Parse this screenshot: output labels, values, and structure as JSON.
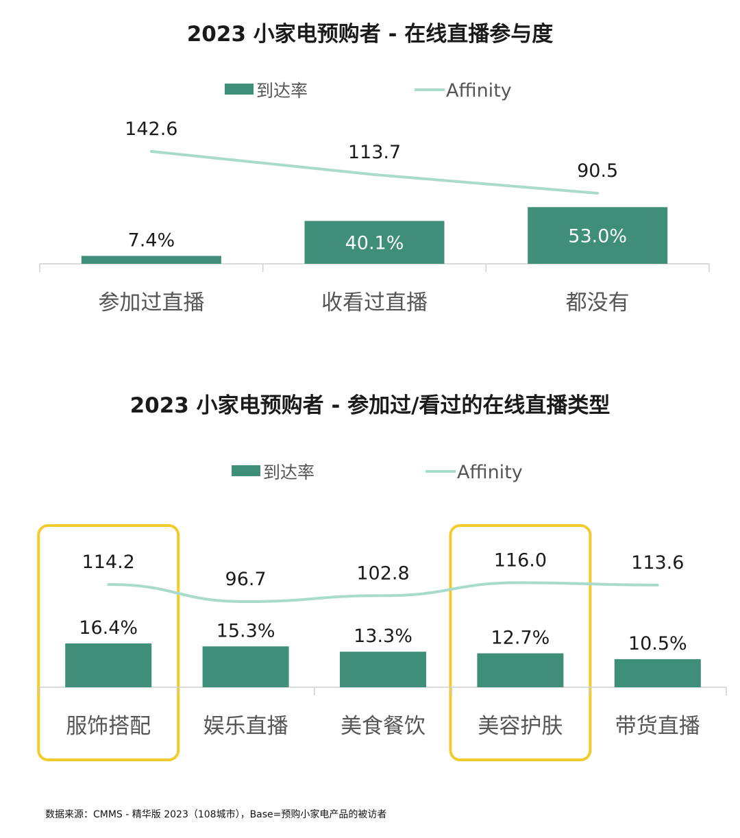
{
  "colors": {
    "bar": "#3f8f78",
    "line": "#a9dbcd",
    "highlight": "#f2cc2d",
    "axis": "#cfcfcf",
    "text": "#1a1a1a",
    "category_text": "#555555",
    "bar_label_inside": "#ffffff"
  },
  "chart_data": [
    {
      "type": "bar",
      "title": "2023 小家电预购者 - 在线直播参与度",
      "legend": {
        "placement": "top-center",
        "bar_label": "到达率",
        "line_label": "Affinity"
      },
      "categories": [
        "参加过直播",
        "收看过直播",
        "都没有"
      ],
      "series": [
        {
          "name": "到达率",
          "type": "bar",
          "values": [
            7.4,
            40.1,
            53.0
          ],
          "labels": [
            "7.4%",
            "40.1%",
            "53.0%"
          ]
        },
        {
          "name": "Affinity",
          "type": "line",
          "values": [
            142.6,
            113.7,
            90.5
          ],
          "labels": [
            "142.6",
            "113.7",
            "90.5"
          ]
        }
      ],
      "ylim_bar": [
        0,
        60
      ],
      "ylim_line": [
        60,
        150
      ],
      "grid": false
    },
    {
      "type": "bar",
      "title": "2023 小家电预购者 - 参加过/看过的在线直播类型",
      "legend": {
        "placement": "top-center",
        "bar_label": "到达率",
        "line_label": "Affinity"
      },
      "categories": [
        "服饰搭配",
        "娱乐直播",
        "美食餐饮",
        "美容护肤",
        "带货直播"
      ],
      "highlighted": [
        "服饰搭配",
        "美容护肤"
      ],
      "series": [
        {
          "name": "到达率",
          "type": "bar",
          "values": [
            16.4,
            15.3,
            13.3,
            12.7,
            10.5
          ],
          "labels": [
            "16.4%",
            "15.3%",
            "13.3%",
            "12.7%",
            "10.5%"
          ]
        },
        {
          "name": "Affinity",
          "type": "line",
          "values": [
            114.2,
            96.7,
            102.8,
            116.0,
            113.6
          ],
          "labels": [
            "114.2",
            "96.7",
            "102.8",
            "116.0",
            "113.6"
          ]
        }
      ],
      "ylim_bar": [
        0,
        60
      ],
      "ylim_line": [
        0,
        150
      ],
      "grid": false
    }
  ],
  "footer": {
    "source": "数据来源：CMMS - 精华版 2023（108城市），Base=预购小家电产品的被访者"
  }
}
